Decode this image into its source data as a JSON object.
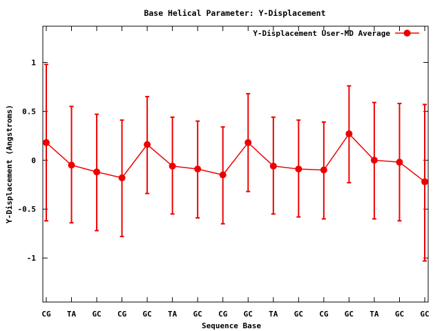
{
  "chart_data": {
    "type": "line",
    "title": "Base  Helical Parameter: Y-Displacement",
    "xlabel": "Sequence Base",
    "ylabel": "Y-Displacement (Angstroms)",
    "ylim": [
      -1.45,
      1.37
    ],
    "yticks": [
      -1,
      -0.5,
      0,
      0.5,
      1
    ],
    "ytick_labels": [
      "-1",
      "-0.5",
      "0",
      "0.5",
      "1"
    ],
    "grid": false,
    "legend_position": "top-right",
    "categories": [
      "CG",
      "TA",
      "GC",
      "CG",
      "GC",
      "TA",
      "GC",
      "CG",
      "GC",
      "TA",
      "GC",
      "CG",
      "GC",
      "TA",
      "GC",
      "GC"
    ],
    "series": [
      {
        "name": "Y-Displacement User-MD Average",
        "color": "#ee0000",
        "values": [
          0.18,
          -0.05,
          -0.12,
          -0.18,
          0.16,
          -0.06,
          -0.09,
          -0.15,
          0.18,
          -0.06,
          -0.09,
          -0.1,
          0.27,
          0.0,
          -0.02,
          -0.22
        ],
        "error_low": [
          -0.62,
          -0.64,
          -0.72,
          -0.78,
          -0.34,
          -0.55,
          -0.59,
          -0.65,
          -0.32,
          -0.55,
          -0.58,
          -0.6,
          -0.23,
          -0.6,
          -0.62,
          -1.03
        ],
        "error_high": [
          0.98,
          0.55,
          0.47,
          0.41,
          0.65,
          0.44,
          0.4,
          0.34,
          0.68,
          0.44,
          0.41,
          0.39,
          0.76,
          0.59,
          0.58,
          0.57
        ]
      }
    ]
  }
}
